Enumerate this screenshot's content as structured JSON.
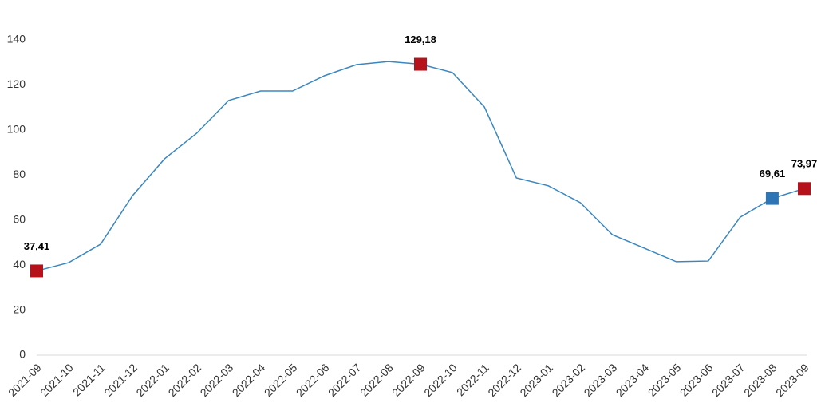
{
  "chart_data": {
    "type": "line",
    "categories": [
      "2021-09",
      "2021-10",
      "2021-11",
      "2021-12",
      "2022-01",
      "2022-02",
      "2022-03",
      "2022-04",
      "2022-05",
      "2022-06",
      "2022-07",
      "2022-08",
      "2022-09",
      "2022-10",
      "2022-11",
      "2022-12",
      "2023-01",
      "2023-02",
      "2023-03",
      "2023-04",
      "2023-05",
      "2023-06",
      "2023-07",
      "2023-08",
      "2023-09"
    ],
    "values": [
      37.41,
      41.1,
      49.3,
      70.9,
      87.2,
      98.5,
      113.1,
      117.3,
      117.3,
      124.1,
      129.0,
      130.4,
      129.18,
      125.5,
      110.2,
      78.7,
      75.2,
      67.7,
      53.5,
      47.5,
      41.5,
      41.8,
      61.3,
      69.61,
      73.97
    ],
    "value_labels": [
      "37,41",
      null,
      null,
      null,
      null,
      null,
      null,
      null,
      null,
      null,
      null,
      null,
      "129,18",
      null,
      null,
      null,
      null,
      null,
      null,
      null,
      null,
      null,
      null,
      "69,61",
      "73,97"
    ],
    "marker_colors": [
      "#b5121b",
      null,
      null,
      null,
      null,
      null,
      null,
      null,
      null,
      null,
      null,
      null,
      "#b5121b",
      null,
      null,
      null,
      null,
      null,
      null,
      null,
      null,
      null,
      null,
      "#2e75b6",
      "#b5121b"
    ],
    "color": "#3a87c0",
    "ylim": [
      0,
      140
    ],
    "yticks": [
      0,
      20,
      40,
      60,
      80,
      100,
      120,
      140
    ],
    "grid": false
  }
}
